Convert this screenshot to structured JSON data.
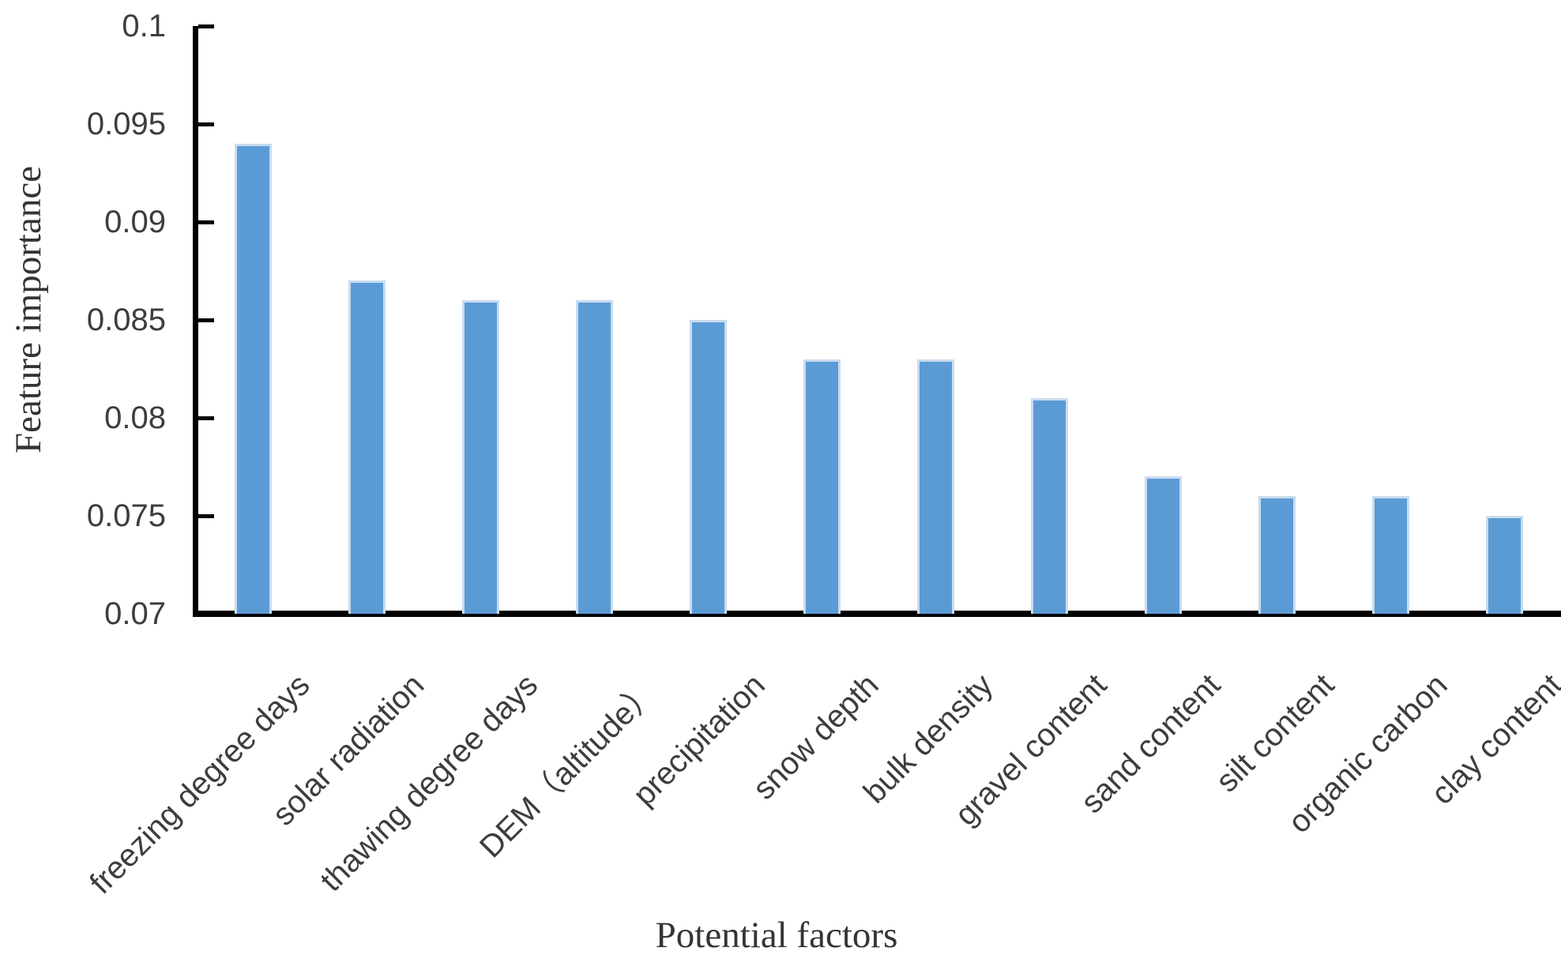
{
  "chart_data": {
    "type": "bar",
    "title": "",
    "xlabel": "Potential factors",
    "ylabel": "Feature importance",
    "categories": [
      "freezing degree days",
      "solar radiation",
      "thawing degree days",
      "DEM（altitude）",
      "precipitation",
      "snow depth",
      "bulk density",
      "gravel content",
      "sand content",
      "silt content",
      "organic carbon",
      "clay content"
    ],
    "values": [
      0.094,
      0.087,
      0.086,
      0.086,
      0.085,
      0.083,
      0.083,
      0.081,
      0.077,
      0.076,
      0.076,
      0.075
    ],
    "ylim": [
      0.07,
      0.1
    ],
    "ytick_step": 0.005,
    "ytick_labels": [
      "0.1",
      "0.095",
      "0.09",
      "0.085",
      "0.08",
      "0.075",
      "0.07"
    ],
    "grid": false,
    "legend": "none",
    "colors": {
      "bar_fill": "#5B9BD5",
      "bar_edge": "#C9DCF0",
      "axis": "#000000",
      "tick_text": "#3d3d3d",
      "title_text": "#343434"
    }
  }
}
